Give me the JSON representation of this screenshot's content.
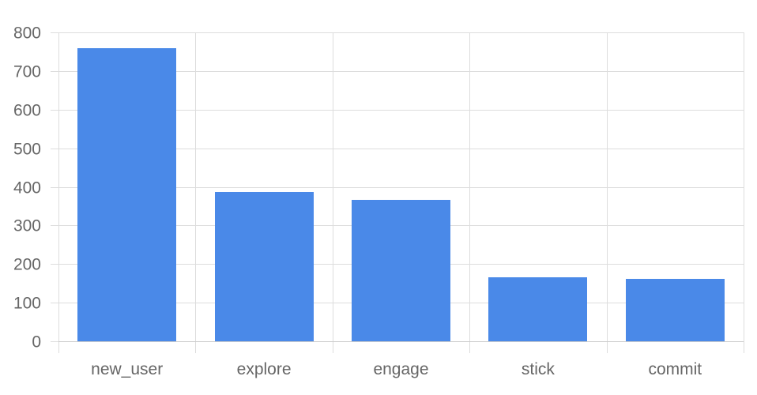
{
  "colors": {
    "bar": "#4a89e8",
    "grid": "#dddddd",
    "axis": "#cccccc",
    "text": "#666666",
    "background": "#ffffff"
  },
  "chart_data": {
    "type": "bar",
    "categories": [
      "new_user",
      "explore",
      "engage",
      "stick",
      "commit"
    ],
    "series": [
      {
        "values": [
          760,
          387,
          366,
          166,
          161
        ],
        "color": "#4a89e8"
      }
    ],
    "title": "",
    "xlabel": "",
    "ylabel": "",
    "ylim": [
      0,
      800
    ],
    "yticks": [
      0,
      100,
      200,
      300,
      400,
      500,
      600,
      700,
      800
    ],
    "grid": true,
    "legend": "none"
  }
}
